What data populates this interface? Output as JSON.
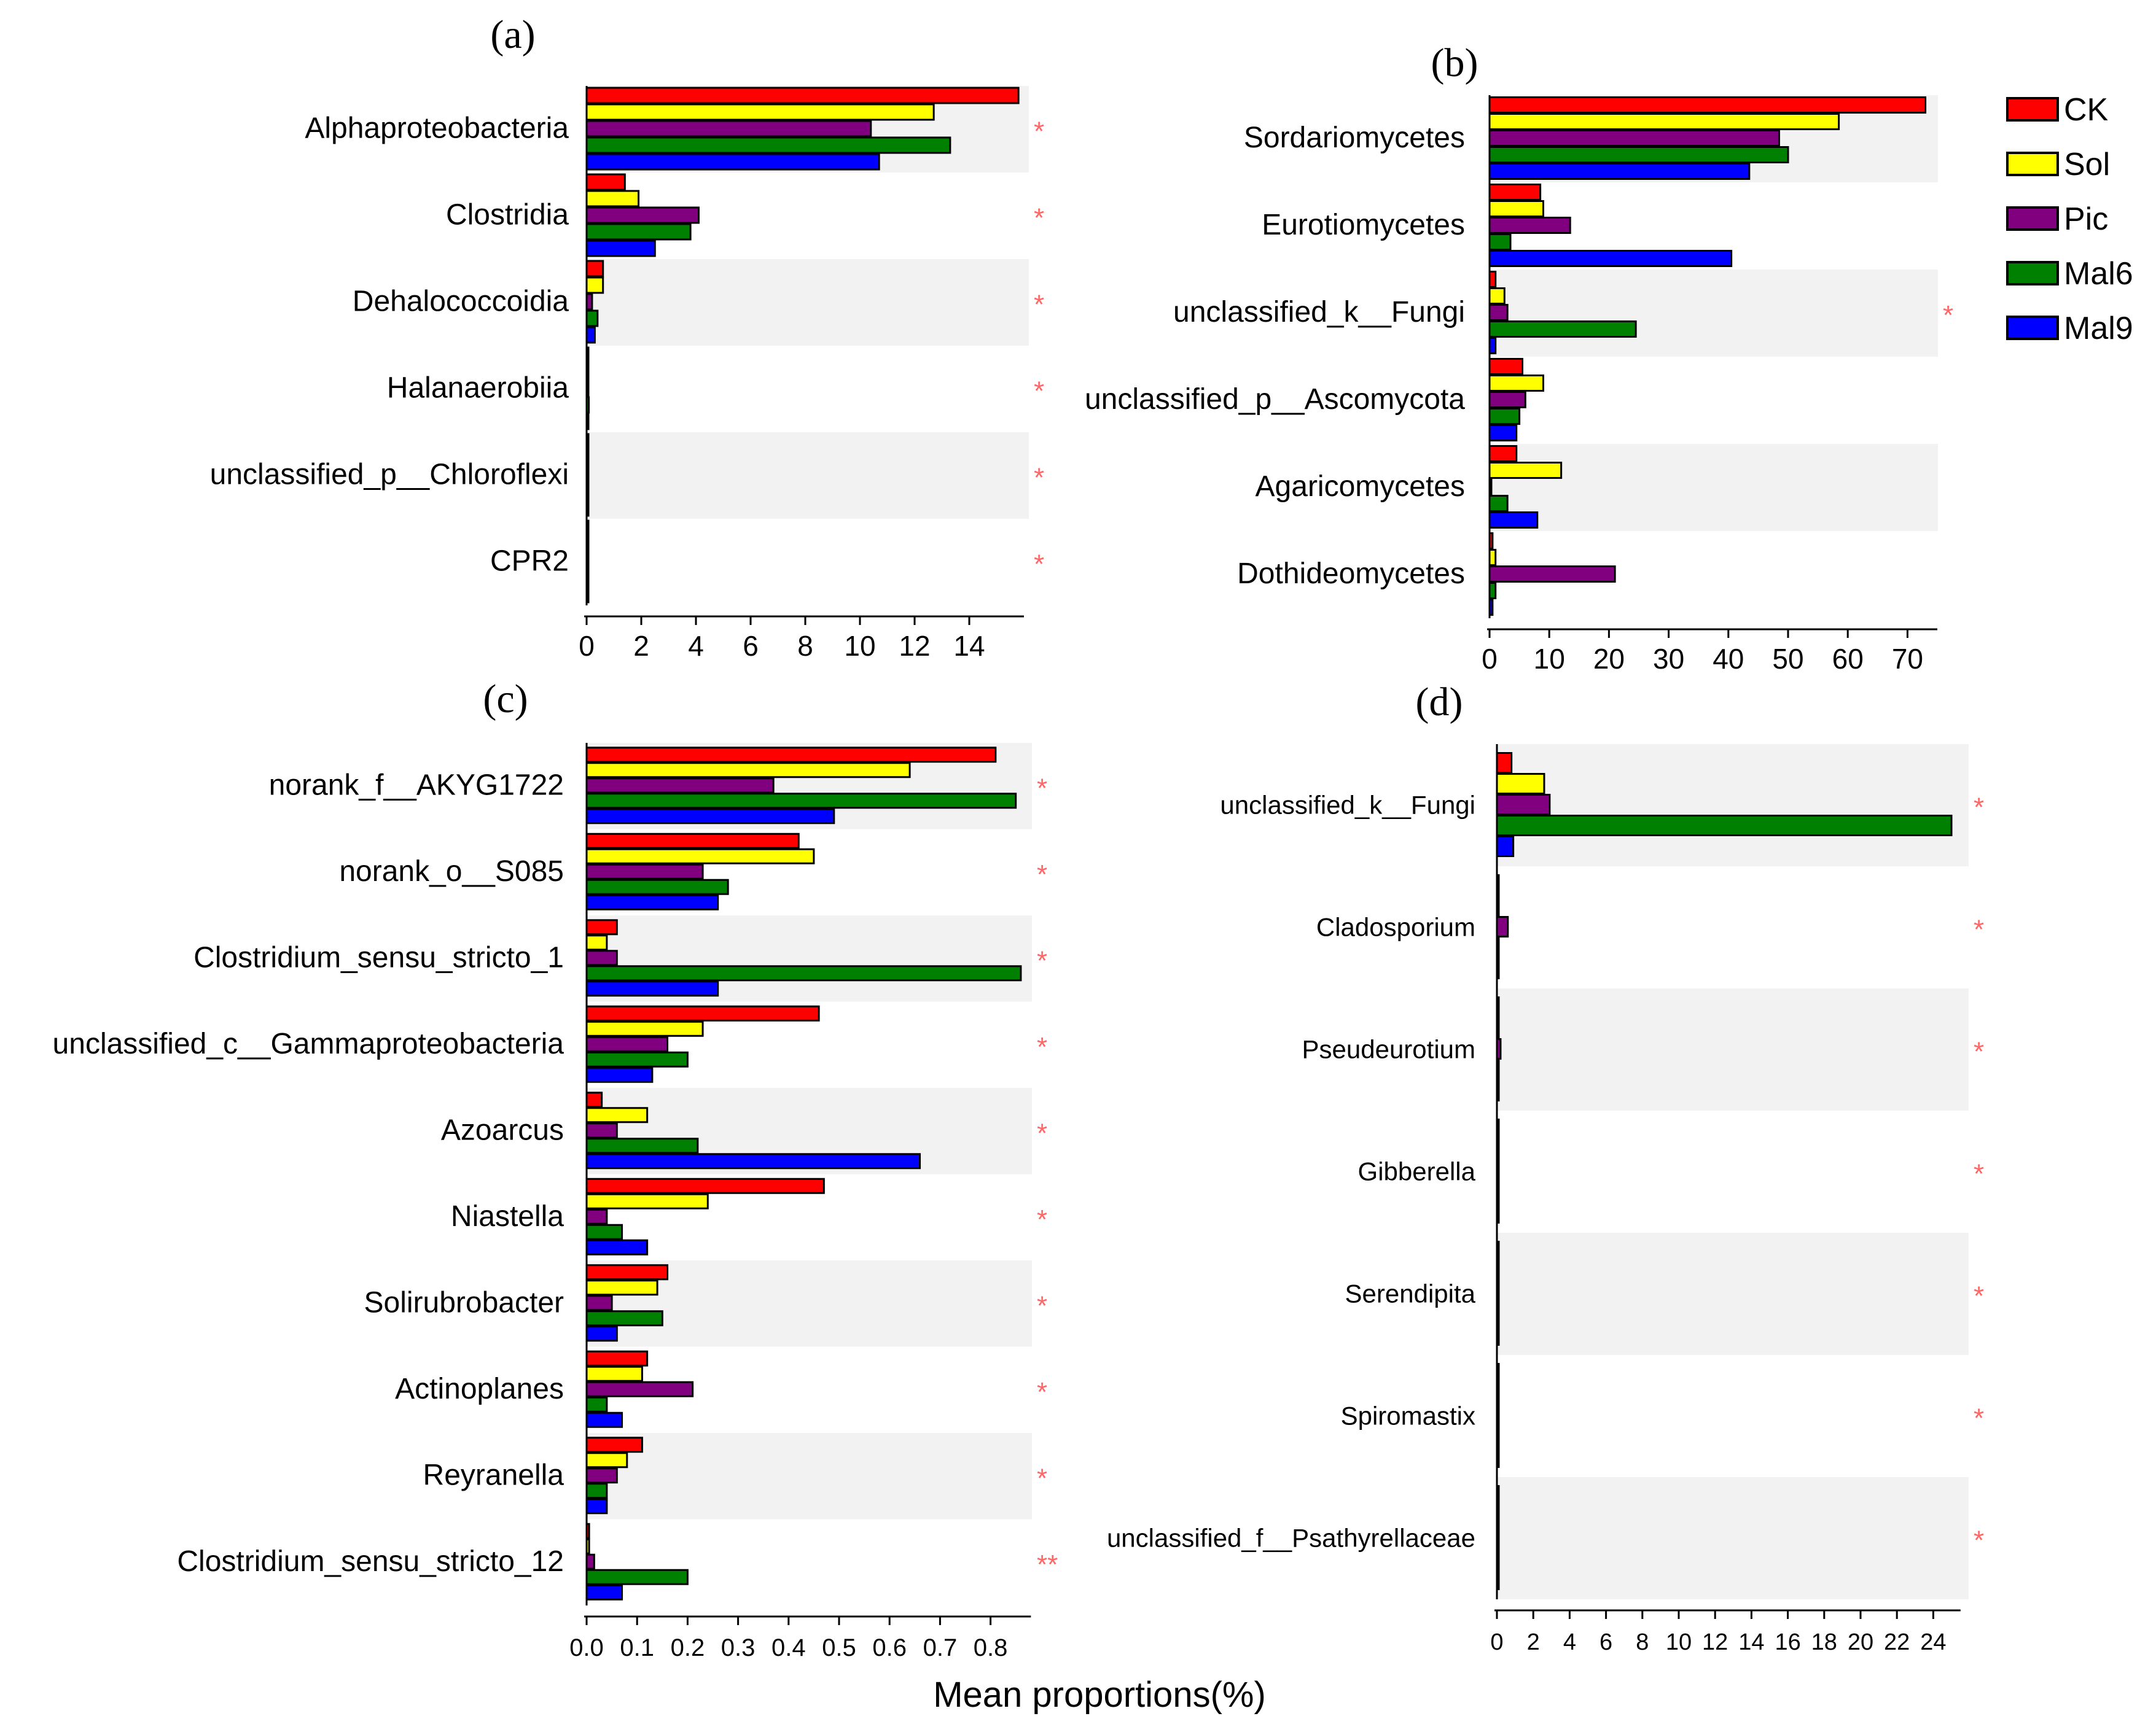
{
  "figure": {
    "xlabel": "Mean proportions(%)",
    "legend": {
      "position": "top-right",
      "items": [
        {
          "name": "CK",
          "color": "#ff0000"
        },
        {
          "name": "Sol",
          "color": "#ffff00"
        },
        {
          "name": "Pic",
          "color": "#800080"
        },
        {
          "name": "Mal6",
          "color": "#008000"
        },
        {
          "name": "Mal9",
          "color": "#0000ff"
        }
      ]
    }
  },
  "chart_data": [
    {
      "id": "a",
      "type": "bar",
      "orientation": "horizontal",
      "title": "(a)",
      "categories": [
        "Alphaproteobacteria",
        "Clostridia",
        "Dehalococcoidia",
        "Halanaerobiia",
        "unclassified_p__Chloroflexi",
        "CPR2"
      ],
      "series": [
        {
          "name": "CK",
          "values": [
            15.8,
            1.4,
            0.6,
            0.05,
            0.05,
            0.02
          ]
        },
        {
          "name": "Sol",
          "values": [
            12.7,
            1.9,
            0.6,
            0.05,
            0.05,
            0.02
          ]
        },
        {
          "name": "Pic",
          "values": [
            10.4,
            4.1,
            0.2,
            0.05,
            0.05,
            0.02
          ]
        },
        {
          "name": "Mal6",
          "values": [
            13.3,
            3.8,
            0.4,
            0.08,
            0.05,
            0.02
          ]
        },
        {
          "name": "Mal9",
          "values": [
            10.7,
            2.5,
            0.3,
            0.05,
            0.05,
            0.02
          ]
        }
      ],
      "xticks": [
        0,
        2,
        4,
        6,
        8,
        10,
        12,
        14
      ],
      "xlim": [
        0,
        16
      ],
      "significance": [
        "*",
        "*",
        "*",
        "*",
        "*",
        "*"
      ]
    },
    {
      "id": "b",
      "type": "bar",
      "orientation": "horizontal",
      "title": "(b)",
      "categories": [
        "Sordariomycetes",
        "Eurotiomycetes",
        "unclassified_k__Fungi",
        "unclassified_p__Ascomycota",
        "Agaricomycetes",
        "Dothideomycetes"
      ],
      "series": [
        {
          "name": "CK",
          "values": [
            73,
            8.5,
            1.0,
            5.5,
            4.5,
            0.5
          ]
        },
        {
          "name": "Sol",
          "values": [
            58.5,
            9.0,
            2.5,
            9.0,
            12.0,
            1.0
          ]
        },
        {
          "name": "Pic",
          "values": [
            48.5,
            13.5,
            3.0,
            6.0,
            0.3,
            21.0
          ]
        },
        {
          "name": "Mal6",
          "values": [
            50.0,
            3.5,
            24.5,
            5.0,
            3.0,
            1.0
          ]
        },
        {
          "name": "Mal9",
          "values": [
            43.5,
            40.5,
            1.0,
            4.5,
            8.0,
            0.5
          ]
        }
      ],
      "xticks": [
        0,
        10,
        20,
        30,
        40,
        50,
        60,
        70
      ],
      "xlim": [
        0,
        75
      ],
      "significance": [
        "",
        "",
        "*",
        "",
        "",
        ""
      ]
    },
    {
      "id": "c",
      "type": "bar",
      "orientation": "horizontal",
      "title": "(c)",
      "categories": [
        "norank_f__AKYG1722",
        "norank_o__S085",
        "Clostridium_sensu_stricto_1",
        "unclassified_c__Gammaproteobacteria",
        "Azoarcus",
        "Niastella",
        "Solirubrobacter",
        "Actinoplanes",
        "Reyranella",
        "Clostridium_sensu_stricto_12"
      ],
      "series": [
        {
          "name": "CK",
          "values": [
            0.81,
            0.42,
            0.06,
            0.46,
            0.03,
            0.47,
            0.16,
            0.12,
            0.11,
            0.005
          ]
        },
        {
          "name": "Sol",
          "values": [
            0.64,
            0.45,
            0.04,
            0.23,
            0.12,
            0.24,
            0.14,
            0.11,
            0.08,
            0.005
          ]
        },
        {
          "name": "Pic",
          "values": [
            0.37,
            0.23,
            0.06,
            0.16,
            0.06,
            0.04,
            0.05,
            0.21,
            0.06,
            0.015
          ]
        },
        {
          "name": "Mal6",
          "values": [
            0.85,
            0.28,
            0.86,
            0.2,
            0.22,
            0.07,
            0.15,
            0.04,
            0.04,
            0.2
          ]
        },
        {
          "name": "Mal9",
          "values": [
            0.49,
            0.26,
            0.26,
            0.13,
            0.66,
            0.12,
            0.06,
            0.07,
            0.04,
            0.07
          ]
        }
      ],
      "xticks": [
        "0.0",
        "0.1",
        "0.2",
        "0.3",
        "0.4",
        "0.5",
        "0.6",
        "0.7",
        "0.8"
      ],
      "xlim": [
        0,
        0.88
      ],
      "significance": [
        "*",
        "*",
        "*",
        "*",
        "*",
        "*",
        "*",
        "*",
        "*",
        "**"
      ]
    },
    {
      "id": "d",
      "type": "bar",
      "orientation": "horizontal",
      "title": "(d)",
      "categories": [
        "unclassified_k__Fungi",
        "Cladosporium",
        "Pseudeurotium",
        "Gibberella",
        "Serendipita",
        "Spiromastix",
        "unclassified_f__Psathyrellaceae"
      ],
      "series": [
        {
          "name": "CK",
          "values": [
            0.8,
            0.05,
            0.05,
            0.05,
            0.03,
            0.02,
            0.02
          ]
        },
        {
          "name": "Sol",
          "values": [
            2.6,
            0.05,
            0.05,
            0.05,
            0.03,
            0.02,
            0.02
          ]
        },
        {
          "name": "Pic",
          "values": [
            2.9,
            0.6,
            0.2,
            0.1,
            0.05,
            0.02,
            0.02
          ]
        },
        {
          "name": "Mal6",
          "values": [
            25.0,
            0.05,
            0.05,
            0.05,
            0.05,
            0.02,
            0.02
          ]
        },
        {
          "name": "Mal9",
          "values": [
            0.9,
            0.05,
            0.05,
            0.05,
            0.05,
            0.02,
            0.02
          ]
        }
      ],
      "xticks": [
        0,
        2,
        4,
        6,
        8,
        10,
        12,
        14,
        16,
        18,
        20,
        22,
        24
      ],
      "xlim": [
        0,
        25.5
      ],
      "significance": [
        "*",
        "*",
        "*",
        "*",
        "*",
        "*",
        "*"
      ]
    }
  ]
}
